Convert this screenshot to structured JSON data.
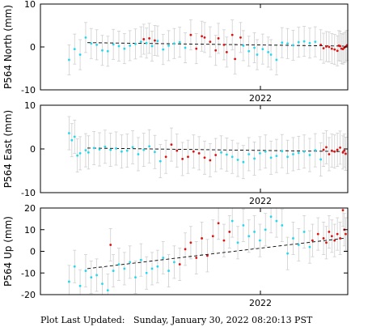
{
  "footer_text": "Plot Last Updated:   Sunday, January 30, 2022 08:20:13 PST",
  "colors": {
    "earlier": "#22d9ee",
    "recent": "#dd1111",
    "errorbar": "#cfcfcf",
    "trend": "#000000"
  },
  "chart_data": [
    {
      "type": "scatter",
      "ylabel": "P564 North (mm)",
      "ylim": [
        -10,
        10
      ],
      "yticks": [
        -10,
        0,
        10
      ],
      "xtick_label": "2022",
      "grid": false,
      "error_bar_mm": 3.5,
      "trend": {
        "start": 1.0,
        "end": 0.2
      },
      "series": [
        {
          "color_role": "earlier",
          "t": [
            0.01,
            0.03,
            0.05,
            0.07,
            0.09,
            0.11,
            0.13,
            0.15,
            0.17,
            0.19,
            0.21,
            0.23,
            0.25,
            0.27,
            0.29,
            0.31,
            0.33,
            0.35,
            0.37,
            0.39,
            0.41,
            0.43
          ],
          "values": [
            -3.0,
            -0.5,
            -1.8,
            2.2,
            0.8,
            0.5,
            -0.8,
            -1.0,
            0.6,
            0.2,
            -0.4,
            0.3,
            0.7,
            1.2,
            0.9,
            0.2,
            1.4,
            -0.6,
            0.3,
            0.8,
            1.1,
            -0.2
          ]
        },
        {
          "color_role": "recent",
          "t": [
            0.28,
            0.3,
            0.32,
            0.45,
            0.47,
            0.49,
            0.5,
            0.52,
            0.54,
            0.55,
            0.57,
            0.58,
            0.6,
            0.61,
            0.63
          ],
          "values": [
            1.8,
            2.0,
            1.5,
            2.8,
            -0.4,
            2.5,
            2.2,
            1.2,
            -0.8,
            2.0,
            0.5,
            -1.2,
            2.8,
            -2.8,
            2.2
          ]
        },
        {
          "color_role": "earlier",
          "t": [
            0.64,
            0.66,
            0.68,
            0.69,
            0.71,
            0.73,
            0.74,
            0.76,
            0.78,
            0.8,
            0.82,
            0.84,
            0.86,
            0.88,
            0.9
          ],
          "values": [
            0.3,
            -1.0,
            -0.2,
            -1.8,
            -0.5,
            -1.2,
            -1.8,
            -3.0,
            1.0,
            0.8,
            0.4,
            1.1,
            1.3,
            0.9,
            1.2
          ]
        },
        {
          "color_role": "recent",
          "t": [
            0.92,
            0.93,
            0.94,
            0.95,
            0.96,
            0.97,
            0.98,
            0.985,
            0.99,
            0.995,
            1.0,
            1.005,
            1.01,
            1.015
          ],
          "values": [
            0.5,
            -0.3,
            0.1,
            0.0,
            -0.4,
            -0.6,
            -0.9,
            0.3,
            0.2,
            -0.4,
            -0.5,
            -0.2,
            0.1,
            0.4
          ]
        }
      ]
    },
    {
      "type": "scatter",
      "ylabel": "P564 East (mm)",
      "ylim": [
        -10,
        10
      ],
      "yticks": [
        -10,
        0,
        10
      ],
      "xtick_label": "2022",
      "grid": false,
      "error_bar_mm": 3.8,
      "trend": {
        "start": 0.2,
        "end": -0.6
      },
      "series": [
        {
          "color_role": "earlier",
          "t": [
            0.01,
            0.02,
            0.03,
            0.04,
            0.05,
            0.07,
            0.08,
            0.1,
            0.12,
            0.14,
            0.16,
            0.18,
            0.2,
            0.22,
            0.24,
            0.26,
            0.28,
            0.3,
            0.32,
            0.34
          ],
          "values": [
            3.6,
            2.0,
            2.8,
            -1.5,
            -1.0,
            -0.3,
            -0.8,
            0.2,
            -0.1,
            0.5,
            -0.2,
            0.1,
            -0.6,
            -0.4,
            0.4,
            -1.2,
            -0.2,
            0.6,
            -0.7,
            -2.8
          ]
        },
        {
          "color_role": "recent",
          "t": [
            0.36,
            0.38,
            0.4,
            0.42,
            0.44,
            0.46,
            0.48,
            0.5,
            0.52,
            0.54
          ],
          "values": [
            -1.8,
            1.0,
            -0.4,
            -2.3,
            -1.8,
            -0.6,
            -1.0,
            -2.0,
            -2.6,
            -1.4
          ]
        },
        {
          "color_role": "earlier",
          "t": [
            0.56,
            0.58,
            0.6,
            0.62,
            0.64,
            0.66,
            0.68,
            0.7,
            0.72,
            0.74,
            0.76,
            0.78,
            0.8,
            0.82,
            0.84,
            0.86,
            0.88,
            0.9,
            0.92
          ],
          "values": [
            -0.8,
            -1.3,
            -1.8,
            -2.5,
            -3.0,
            -1.2,
            -2.2,
            -1.0,
            -0.6,
            -2.0,
            -1.6,
            -0.5,
            -1.8,
            -1.2,
            -0.9,
            -0.6,
            -1.4,
            -0.3,
            -2.4
          ]
        },
        {
          "color_role": "recent",
          "t": [
            0.93,
            0.94,
            0.95,
            0.96,
            0.97,
            0.98,
            0.99,
            1.0,
            1.005,
            1.01
          ],
          "values": [
            -0.2,
            0.4,
            -1.2,
            -0.4,
            -0.6,
            -0.2,
            0.3,
            -0.8,
            -0.4,
            -1.1
          ]
        }
      ]
    },
    {
      "type": "scatter",
      "ylabel": "P564 Up (mm)",
      "ylim": [
        -20,
        20
      ],
      "yticks": [
        -20,
        -10,
        0,
        10,
        20
      ],
      "xtick_label": "2022",
      "grid": false,
      "error_bar_mm": 7.5,
      "trend": {
        "start": -8.0,
        "end": 6.0
      },
      "series": [
        {
          "color_role": "earlier",
          "t": [
            0.01,
            0.03,
            0.05,
            0.07,
            0.09,
            0.11,
            0.13,
            0.15,
            0.17,
            0.19,
            0.21,
            0.23,
            0.25,
            0.27,
            0.29,
            0.31,
            0.33,
            0.35,
            0.37,
            0.39
          ],
          "values": [
            -14,
            -7,
            -16,
            -9,
            -12,
            -11,
            -15,
            -18,
            -9,
            -6,
            -8,
            -5,
            -12,
            -4,
            -10,
            -8,
            -7,
            -3,
            -9,
            -5
          ]
        },
        {
          "color_role": "recent",
          "t": [
            0.16,
            0.41,
            0.43,
            0.45,
            0.47,
            0.49,
            0.51,
            0.53,
            0.55,
            0.57,
            0.59
          ],
          "values": [
            3,
            -6,
            1,
            4,
            -3,
            6,
            -2,
            7,
            13,
            5,
            9
          ]
        },
        {
          "color_role": "earlier",
          "t": [
            0.6,
            0.62,
            0.64,
            0.66,
            0.68,
            0.7,
            0.72,
            0.74,
            0.76,
            0.78,
            0.8,
            0.82,
            0.84,
            0.86,
            0.88
          ],
          "values": [
            14,
            4,
            12,
            7,
            9,
            5,
            10,
            16,
            14,
            12,
            -1,
            6,
            3,
            9,
            2
          ]
        },
        {
          "color_role": "recent",
          "t": [
            0.89,
            0.91,
            0.93,
            0.94,
            0.95,
            0.96,
            0.97,
            0.98,
            0.99,
            1.0,
            1.005,
            1.01
          ],
          "values": [
            5,
            8,
            6,
            4,
            9,
            7,
            5,
            8,
            6,
            19,
            10,
            8
          ]
        }
      ]
    }
  ]
}
